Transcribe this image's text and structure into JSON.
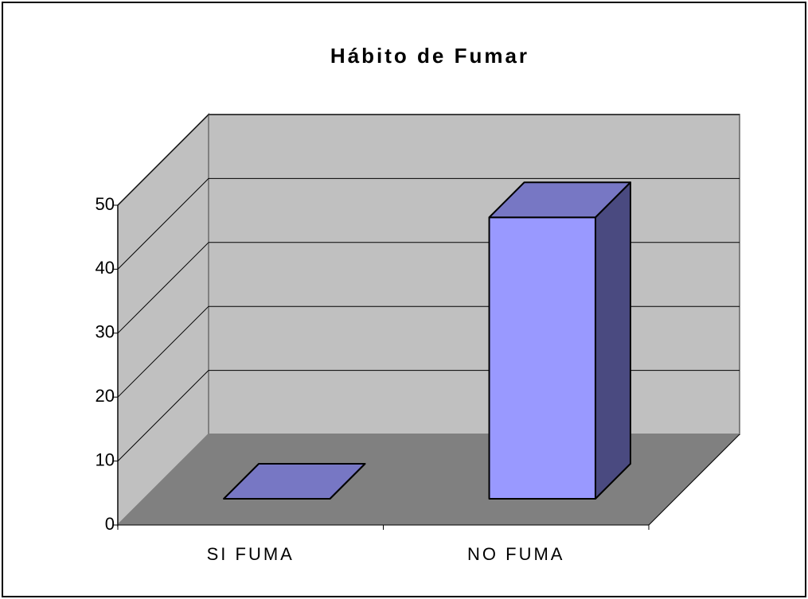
{
  "chart_data": {
    "type": "bar3d",
    "title": "Hábito de Fumar",
    "categories": [
      "SI FUMA",
      "NO FUMA"
    ],
    "values": [
      0,
      44
    ],
    "color": "#9999ff",
    "ylim": [
      0,
      50
    ],
    "yticks": [
      0,
      10,
      20,
      30,
      40,
      50
    ],
    "grid": true
  }
}
